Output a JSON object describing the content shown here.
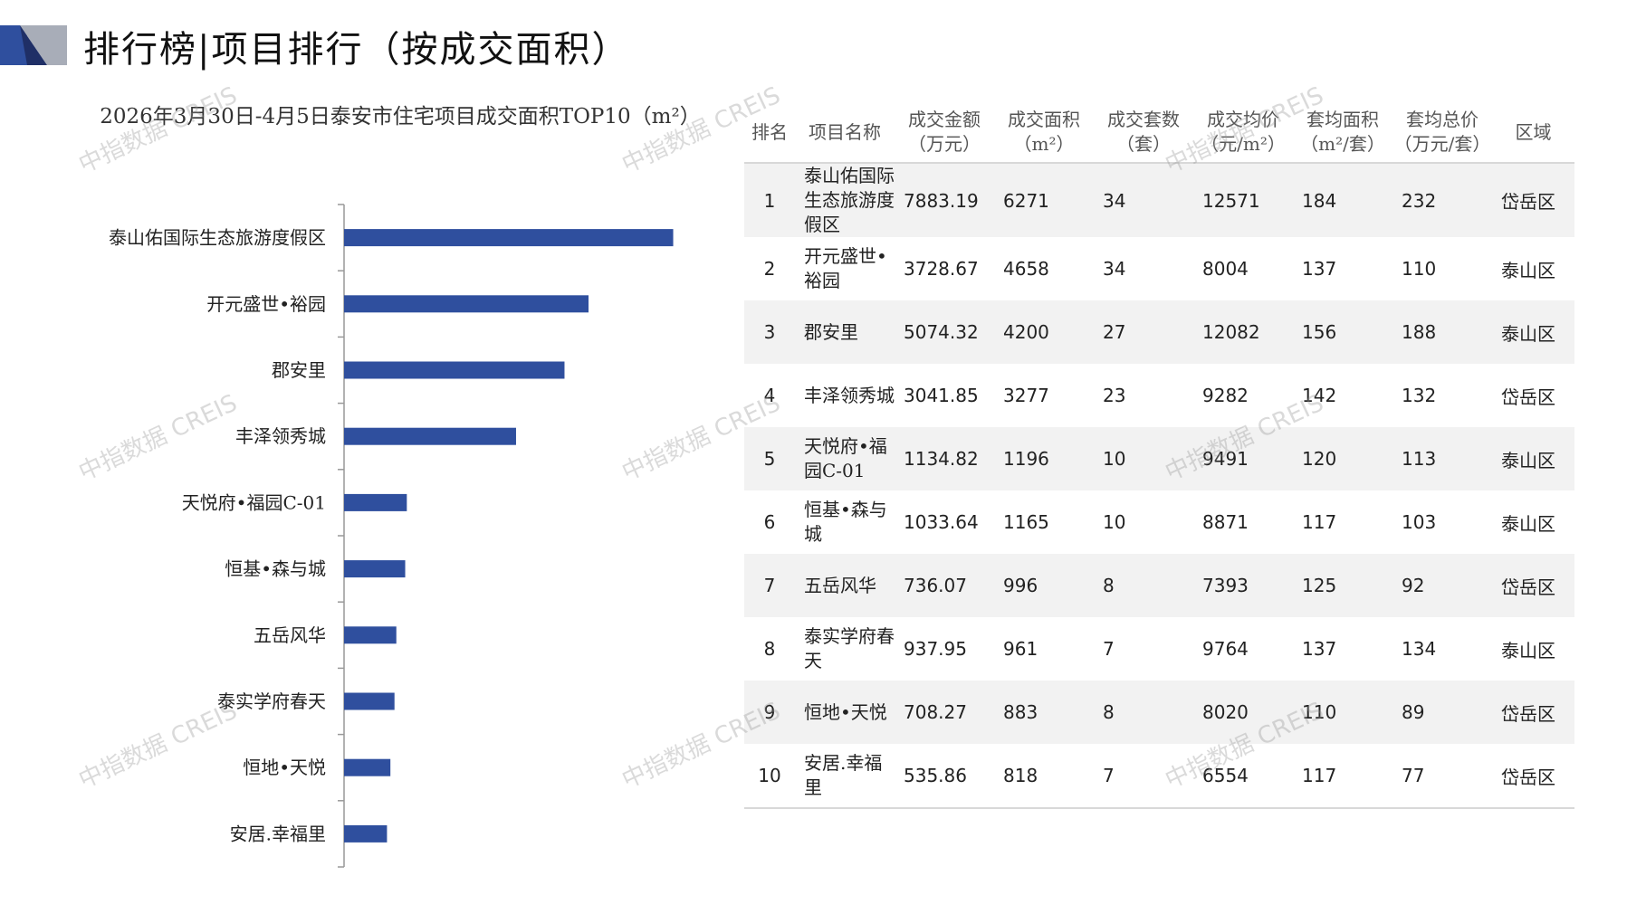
{
  "header": {
    "title": "排行榜|项目排行（按成交面积）",
    "accent_colors": [
      "#2f4f9e",
      "#a8adb8"
    ]
  },
  "watermark": "中指数据 CREIS",
  "chart_data": {
    "type": "bar",
    "orientation": "horizontal",
    "title": "2026年3月30日-4月5日泰安市住宅项目成交面积TOP10（m²）",
    "categories": [
      "泰山佑国际生态旅游度假区",
      "开元盛世•裕园",
      "郡安里",
      "丰泽领秀城",
      "天悦府•福园C-01",
      "恒基•森与城",
      "五岳风华",
      "泰实学府春天",
      "恒地•天悦",
      "安居.幸福里"
    ],
    "values": [
      6271,
      4658,
      4200,
      3277,
      1196,
      1165,
      996,
      961,
      883,
      818
    ],
    "xlim": [
      0,
      6900
    ],
    "bar_color": "#2f4f9e",
    "grid": false,
    "legend": "none"
  },
  "table": {
    "headers": [
      [
        "排名",
        ""
      ],
      [
        "项目名称",
        ""
      ],
      [
        "成交金额",
        "（万元）"
      ],
      [
        "成交面积",
        "（m²）"
      ],
      [
        "成交套数",
        "（套）"
      ],
      [
        "成交均价",
        "（元/m²）"
      ],
      [
        "套均面积",
        "（m²/套）"
      ],
      [
        "套均总价",
        "（万元/套）"
      ],
      [
        "区域",
        ""
      ]
    ],
    "rows": [
      [
        "1",
        "泰山佑国际生态旅游度假区",
        "7883.19",
        "6271",
        "34",
        "12571",
        "184",
        "232",
        "岱岳区"
      ],
      [
        "2",
        "开元盛世•裕园",
        "3728.67",
        "4658",
        "34",
        "8004",
        "137",
        "110",
        "泰山区"
      ],
      [
        "3",
        "郡安里",
        "5074.32",
        "4200",
        "27",
        "12082",
        "156",
        "188",
        "泰山区"
      ],
      [
        "4",
        "丰泽领秀城",
        "3041.85",
        "3277",
        "23",
        "9282",
        "142",
        "132",
        "岱岳区"
      ],
      [
        "5",
        "天悦府•福园C-01",
        "1134.82",
        "1196",
        "10",
        "9491",
        "120",
        "113",
        "泰山区"
      ],
      [
        "6",
        "恒基•森与城",
        "1033.64",
        "1165",
        "10",
        "8871",
        "117",
        "103",
        "泰山区"
      ],
      [
        "7",
        "五岳风华",
        "736.07",
        "996",
        "8",
        "7393",
        "125",
        "92",
        "岱岳区"
      ],
      [
        "8",
        "泰实学府春天",
        "937.95",
        "961",
        "7",
        "9764",
        "137",
        "134",
        "泰山区"
      ],
      [
        "9",
        "恒地•天悦",
        "708.27",
        "883",
        "8",
        "8020",
        "110",
        "89",
        "岱岳区"
      ],
      [
        "10",
        "安居.幸福里",
        "535.86",
        "818",
        "7",
        "6554",
        "117",
        "77",
        "岱岳区"
      ]
    ]
  }
}
